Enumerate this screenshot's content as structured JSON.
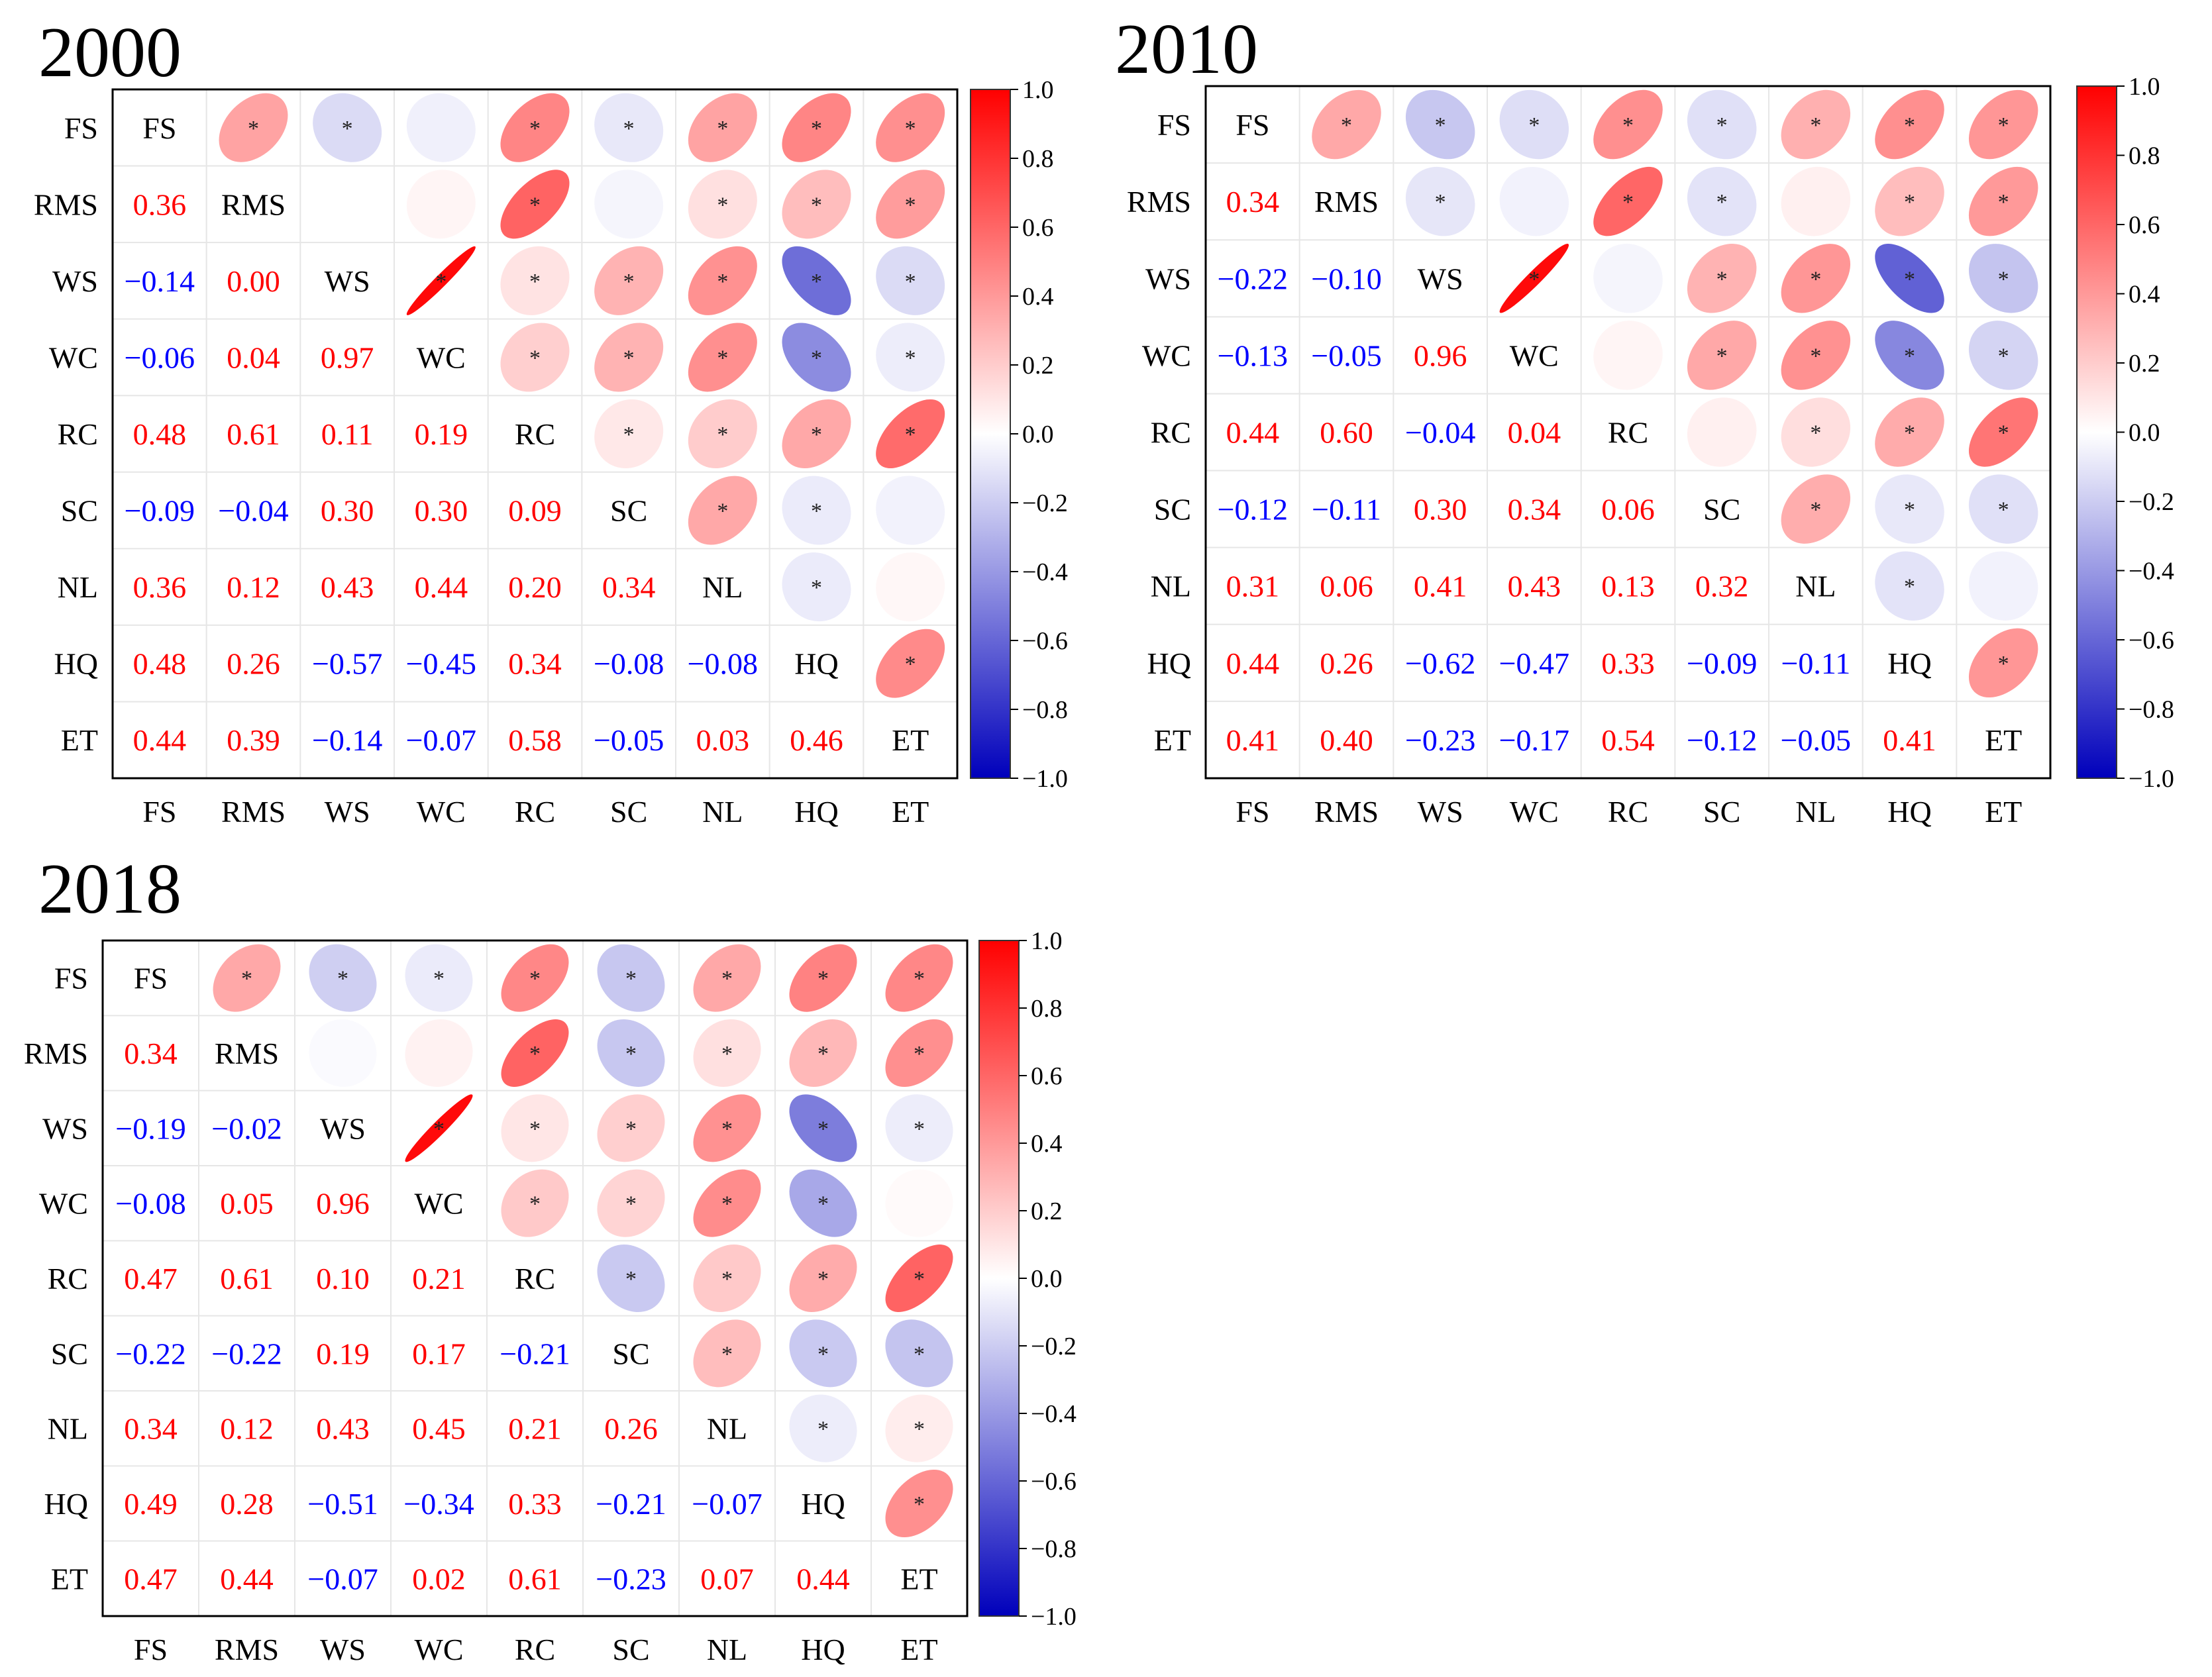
{
  "chart_data": [
    {
      "type": "heatmap",
      "title": "2000",
      "variables": [
        "FS",
        "RMS",
        "WS",
        "WC",
        "RC",
        "SC",
        "NL",
        "HQ",
        "ET"
      ],
      "correlation_lower": [
        [],
        [
          0.36
        ],
        [
          -0.14,
          0.0
        ],
        [
          -0.06,
          0.04,
          0.97
        ],
        [
          0.48,
          0.61,
          0.11,
          0.19
        ],
        [
          -0.09,
          -0.04,
          0.3,
          0.3,
          0.09
        ],
        [
          0.36,
          0.12,
          0.43,
          0.44,
          0.2,
          0.34
        ],
        [
          0.48,
          0.26,
          -0.57,
          -0.45,
          0.34,
          -0.08,
          -0.08
        ],
        [
          0.44,
          0.39,
          -0.14,
          -0.07,
          0.58,
          -0.05,
          0.03,
          0.46
        ]
      ],
      "labels_lower": [
        [],
        [
          "0.36"
        ],
        [
          "−0.14",
          "0.00"
        ],
        [
          "−0.06",
          "0.04",
          "0.97"
        ],
        [
          "0.48",
          "0.61",
          "0.11",
          "0.19"
        ],
        [
          "−0.09",
          "−0.04",
          "0.30",
          "0.30",
          "0.09"
        ],
        [
          "0.36",
          "0.12",
          "0.43",
          "0.44",
          "0.20",
          "0.34"
        ],
        [
          "0.48",
          "0.26",
          "−0.57",
          "−0.45",
          "0.34",
          "−0.08",
          "−0.08"
        ],
        [
          "0.44",
          "0.39",
          "−0.14",
          "−0.07",
          "0.58",
          "−0.05",
          "0.03",
          "0.46"
        ]
      ],
      "significance_upper": [
        [
          null,
          true,
          true,
          false,
          true,
          true,
          true,
          true,
          true
        ],
        [
          null,
          null,
          false,
          false,
          true,
          false,
          true,
          true,
          true
        ],
        [
          null,
          null,
          null,
          true,
          true,
          true,
          true,
          true,
          true
        ],
        [
          null,
          null,
          null,
          null,
          true,
          true,
          true,
          true,
          true
        ],
        [
          null,
          null,
          null,
          null,
          null,
          true,
          true,
          true,
          true
        ],
        [
          null,
          null,
          null,
          null,
          null,
          null,
          true,
          true,
          false
        ],
        [
          null,
          null,
          null,
          null,
          null,
          null,
          null,
          true,
          false
        ],
        [
          null,
          null,
          null,
          null,
          null,
          null,
          null,
          null,
          true
        ],
        [
          null,
          null,
          null,
          null,
          null,
          null,
          null,
          null,
          null
        ]
      ],
      "colorbar": {
        "min": -1.0,
        "max": 1.0,
        "ticks": [
          "1.0",
          "0.8",
          "0.6",
          "0.4",
          "0.2",
          "0.0",
          "−0.2",
          "−0.4",
          "−0.6",
          "−0.8",
          "−1.0"
        ]
      }
    },
    {
      "type": "heatmap",
      "title": "2010",
      "variables": [
        "FS",
        "RMS",
        "WS",
        "WC",
        "RC",
        "SC",
        "NL",
        "HQ",
        "ET"
      ],
      "correlation_lower": [
        [],
        [
          0.34
        ],
        [
          -0.22,
          -0.1
        ],
        [
          -0.13,
          -0.05,
          0.96
        ],
        [
          0.44,
          0.6,
          -0.04,
          0.04
        ],
        [
          -0.12,
          -0.11,
          0.3,
          0.34,
          0.06
        ],
        [
          0.31,
          0.06,
          0.41,
          0.43,
          0.13,
          0.32
        ],
        [
          0.44,
          0.26,
          -0.62,
          -0.47,
          0.33,
          -0.09,
          -0.11
        ],
        [
          0.41,
          0.4,
          -0.23,
          -0.17,
          0.54,
          -0.12,
          -0.05,
          0.41
        ]
      ],
      "labels_lower": [
        [],
        [
          "0.34"
        ],
        [
          "−0.22",
          "−0.10"
        ],
        [
          "−0.13",
          "−0.05",
          "0.96"
        ],
        [
          "0.44",
          "0.60",
          "−0.04",
          "0.04"
        ],
        [
          "−0.12",
          "−0.11",
          "0.30",
          "0.34",
          "0.06"
        ],
        [
          "0.31",
          "0.06",
          "0.41",
          "0.43",
          "0.13",
          "0.32"
        ],
        [
          "0.44",
          "0.26",
          "−0.62",
          "−0.47",
          "0.33",
          "−0.09",
          "−0.11"
        ],
        [
          "0.41",
          "0.40",
          "−0.23",
          "−0.17",
          "0.54",
          "−0.12",
          "−0.05",
          "0.41"
        ]
      ],
      "significance_upper": [
        [
          null,
          true,
          true,
          true,
          true,
          true,
          true,
          true,
          true
        ],
        [
          null,
          null,
          true,
          false,
          true,
          true,
          false,
          true,
          true
        ],
        [
          null,
          null,
          null,
          true,
          false,
          true,
          true,
          true,
          true
        ],
        [
          null,
          null,
          null,
          null,
          false,
          true,
          true,
          true,
          true
        ],
        [
          null,
          null,
          null,
          null,
          null,
          false,
          true,
          true,
          true
        ],
        [
          null,
          null,
          null,
          null,
          null,
          null,
          true,
          true,
          true
        ],
        [
          null,
          null,
          null,
          null,
          null,
          null,
          null,
          true,
          false
        ],
        [
          null,
          null,
          null,
          null,
          null,
          null,
          null,
          null,
          true
        ],
        [
          null,
          null,
          null,
          null,
          null,
          null,
          null,
          null,
          null
        ]
      ],
      "colorbar": {
        "min": -1.0,
        "max": 1.0,
        "ticks": [
          "1.0",
          "0.8",
          "0.6",
          "0.4",
          "0.2",
          "0.0",
          "−0.2",
          "−0.4",
          "−0.6",
          "−0.8",
          "−1.0"
        ]
      }
    },
    {
      "type": "heatmap",
      "title": "2018",
      "variables": [
        "FS",
        "RMS",
        "WS",
        "WC",
        "RC",
        "SC",
        "NL",
        "HQ",
        "ET"
      ],
      "correlation_lower": [
        [],
        [
          0.34
        ],
        [
          -0.19,
          -0.02
        ],
        [
          -0.08,
          0.05,
          0.96
        ],
        [
          0.47,
          0.61,
          0.1,
          0.21
        ],
        [
          -0.22,
          -0.22,
          0.19,
          0.17,
          -0.21
        ],
        [
          0.34,
          0.12,
          0.43,
          0.45,
          0.21,
          0.26
        ],
        [
          0.49,
          0.28,
          -0.51,
          -0.34,
          0.33,
          -0.21,
          -0.07
        ],
        [
          0.47,
          0.44,
          -0.07,
          0.02,
          0.61,
          -0.23,
          0.07,
          0.44
        ]
      ],
      "labels_lower": [
        [],
        [
          "0.34"
        ],
        [
          "−0.19",
          "−0.02"
        ],
        [
          "−0.08",
          "0.05",
          "0.96"
        ],
        [
          "0.47",
          "0.61",
          "0.10",
          "0.21"
        ],
        [
          "−0.22",
          "−0.22",
          "0.19",
          "0.17",
          "−0.21"
        ],
        [
          "0.34",
          "0.12",
          "0.43",
          "0.45",
          "0.21",
          "0.26"
        ],
        [
          "0.49",
          "0.28",
          "−0.51",
          "−0.34",
          "0.33",
          "−0.21",
          "−0.07"
        ],
        [
          "0.47",
          "0.44",
          "−0.07",
          "0.02",
          "0.61",
          "−0.23",
          "0.07",
          "0.44"
        ]
      ],
      "significance_upper": [
        [
          null,
          true,
          true,
          true,
          true,
          true,
          true,
          true,
          true
        ],
        [
          null,
          null,
          false,
          false,
          true,
          true,
          true,
          true,
          true
        ],
        [
          null,
          null,
          null,
          true,
          true,
          true,
          true,
          true,
          true
        ],
        [
          null,
          null,
          null,
          null,
          true,
          true,
          true,
          true,
          false
        ],
        [
          null,
          null,
          null,
          null,
          null,
          true,
          true,
          true,
          true
        ],
        [
          null,
          null,
          null,
          null,
          null,
          null,
          true,
          true,
          true
        ],
        [
          null,
          null,
          null,
          null,
          null,
          null,
          null,
          true,
          true
        ],
        [
          null,
          null,
          null,
          null,
          null,
          null,
          null,
          null,
          true
        ],
        [
          null,
          null,
          null,
          null,
          null,
          null,
          null,
          null,
          null
        ]
      ],
      "colorbar": {
        "min": -1.0,
        "max": 1.0,
        "ticks": [
          "1.0",
          "0.8",
          "0.6",
          "0.4",
          "0.2",
          "0.0",
          "−0.2",
          "−0.4",
          "−0.6",
          "−0.8",
          "−1.0"
        ]
      }
    }
  ],
  "significance_marker": "*",
  "colors": {
    "positive": "#ff0000",
    "negative": "#0000bb",
    "neutral": "#ffffff",
    "positive_text": "#ff0000",
    "negative_text": "#0000ff",
    "grid": "#e6e6e6",
    "frame": "#000000"
  }
}
